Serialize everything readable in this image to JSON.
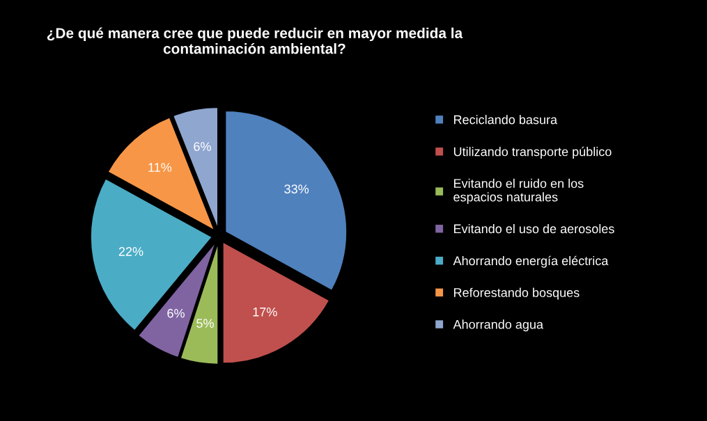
{
  "chart_data": {
    "type": "pie",
    "title": "¿De qué manera cree que puede reducir en mayor medida la contaminación ambiental?",
    "categories": [
      "Reciclando basura",
      "Utilizando transporte público",
      "Evitando el ruido en los espacios naturales",
      "Evitando el uso de aerosoles",
      "Ahorrando energía eléctrica",
      "Reforestando bosques",
      "Ahorrando agua"
    ],
    "values": [
      33,
      17,
      5,
      6,
      22,
      11,
      6
    ],
    "value_labels": [
      "33%",
      "17%",
      "5%",
      "6%",
      "22%",
      "11%",
      "6%"
    ],
    "colors": [
      "#4f81bd",
      "#c0504d",
      "#9bbb59",
      "#8064a2",
      "#4bacc6",
      "#f79646",
      "#8fa6cf"
    ],
    "legend": "right"
  }
}
